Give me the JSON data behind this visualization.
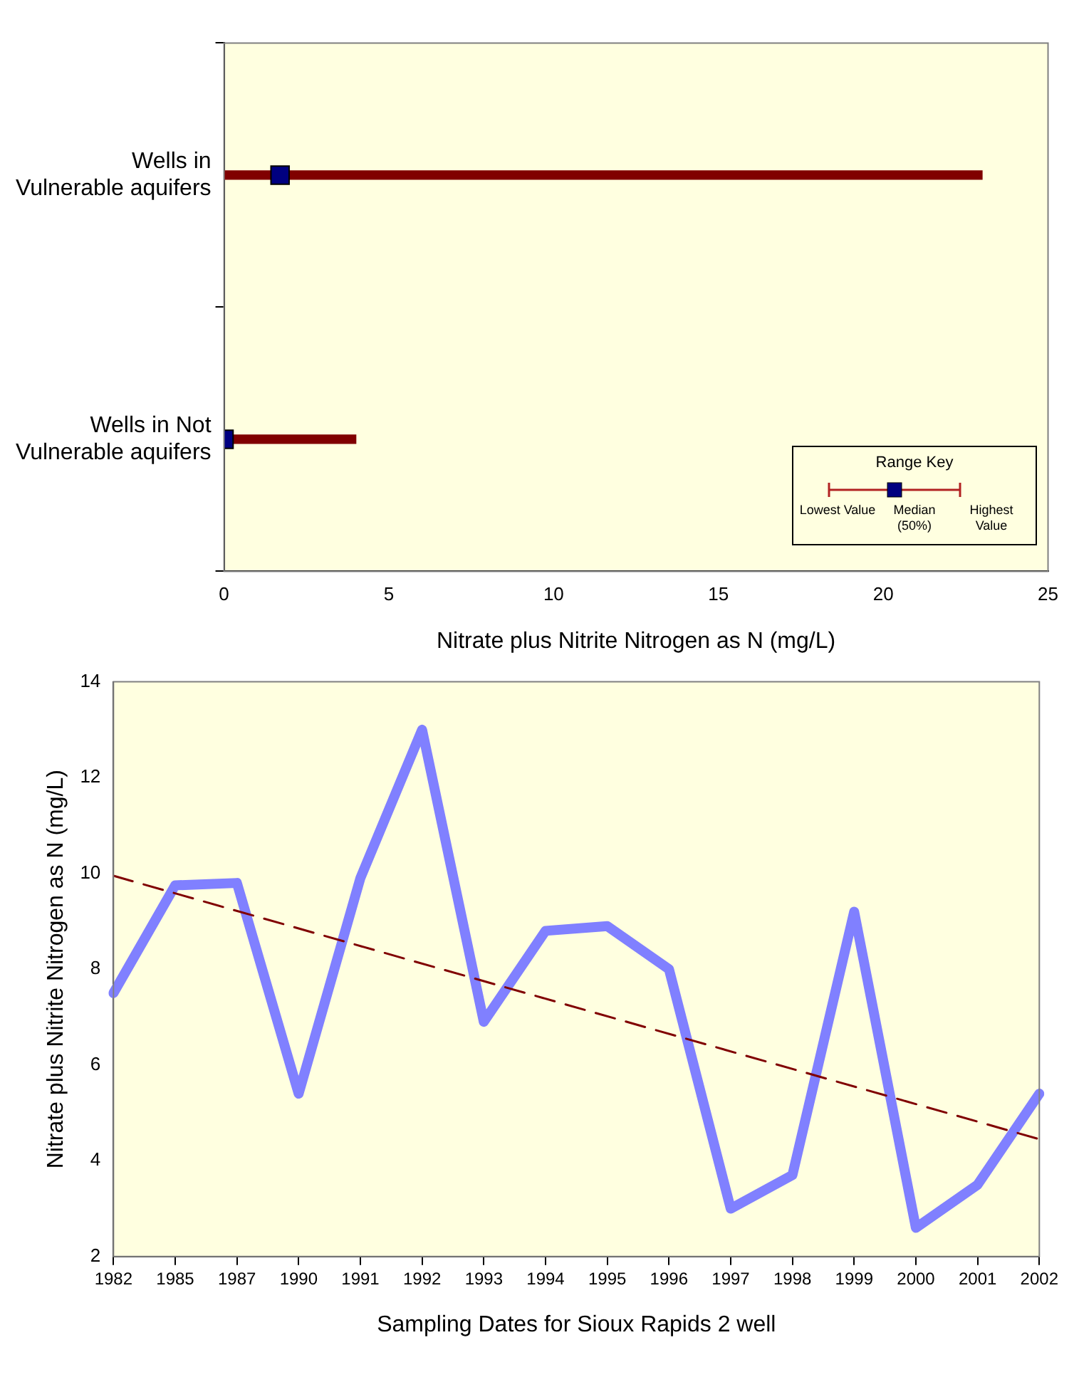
{
  "chart_data": [
    {
      "type": "bar",
      "orientation": "horizontal",
      "xlabel": "Nitrate plus Nitrite Nitrogen as N (mg/L)",
      "categories": [
        "Wells in Vulnerable aquifers",
        "Wells in Not Vulnerable aquifers"
      ],
      "series": [
        {
          "type": "bar",
          "color": "#800000",
          "base": [
            0,
            0
          ],
          "values": [
            23,
            4
          ]
        },
        {
          "type": "scatter",
          "color": "#000080",
          "marker": "square",
          "x": [
            "Wells in Vulnerable aquifers",
            "Wells in Not Vulnerable aquifers"
          ],
          "values": [
            1.7,
            0
          ]
        }
      ],
      "xlim": [
        0,
        25
      ],
      "xticks": [
        0,
        5,
        10,
        15,
        20,
        25
      ],
      "grid": false,
      "legend": false,
      "annotations": [
        "Range Key",
        "Lowest Value",
        "Median (50%)",
        "Highest Value"
      ]
    },
    {
      "type": "line",
      "xlabel": "Sampling Dates for Sioux Rapids 2 well",
      "ylabel": "Nitrate plus Nitrite Nitrogen as N (mg/L)",
      "categories": [
        "1982",
        "1985",
        "1987",
        "1990",
        "1991",
        "1992",
        "1993",
        "1994",
        "1995",
        "1996",
        "1997",
        "1998",
        "1999",
        "2000",
        "2001",
        "2002"
      ],
      "series": [
        {
          "type": "line",
          "color": "#8080ff",
          "marker": "none",
          "line_style": "solid",
          "values": [
            7.5,
            9.75,
            9.8,
            5.4,
            9.9,
            13.0,
            6.9,
            8.8,
            8.9,
            8.0,
            3.0,
            3.7,
            9.2,
            2.6,
            3.5,
            5.4
          ]
        },
        {
          "type": "line",
          "color": "#800000",
          "marker": "none",
          "line_style": "dashed",
          "values": [
            9.95,
            null,
            null,
            null,
            null,
            null,
            null,
            null,
            null,
            null,
            null,
            null,
            null,
            null,
            null,
            4.45
          ]
        }
      ],
      "ylim": [
        2,
        14
      ],
      "yticks": [
        2,
        4,
        6,
        8,
        10,
        12,
        14
      ],
      "grid": false,
      "legend": false
    }
  ]
}
